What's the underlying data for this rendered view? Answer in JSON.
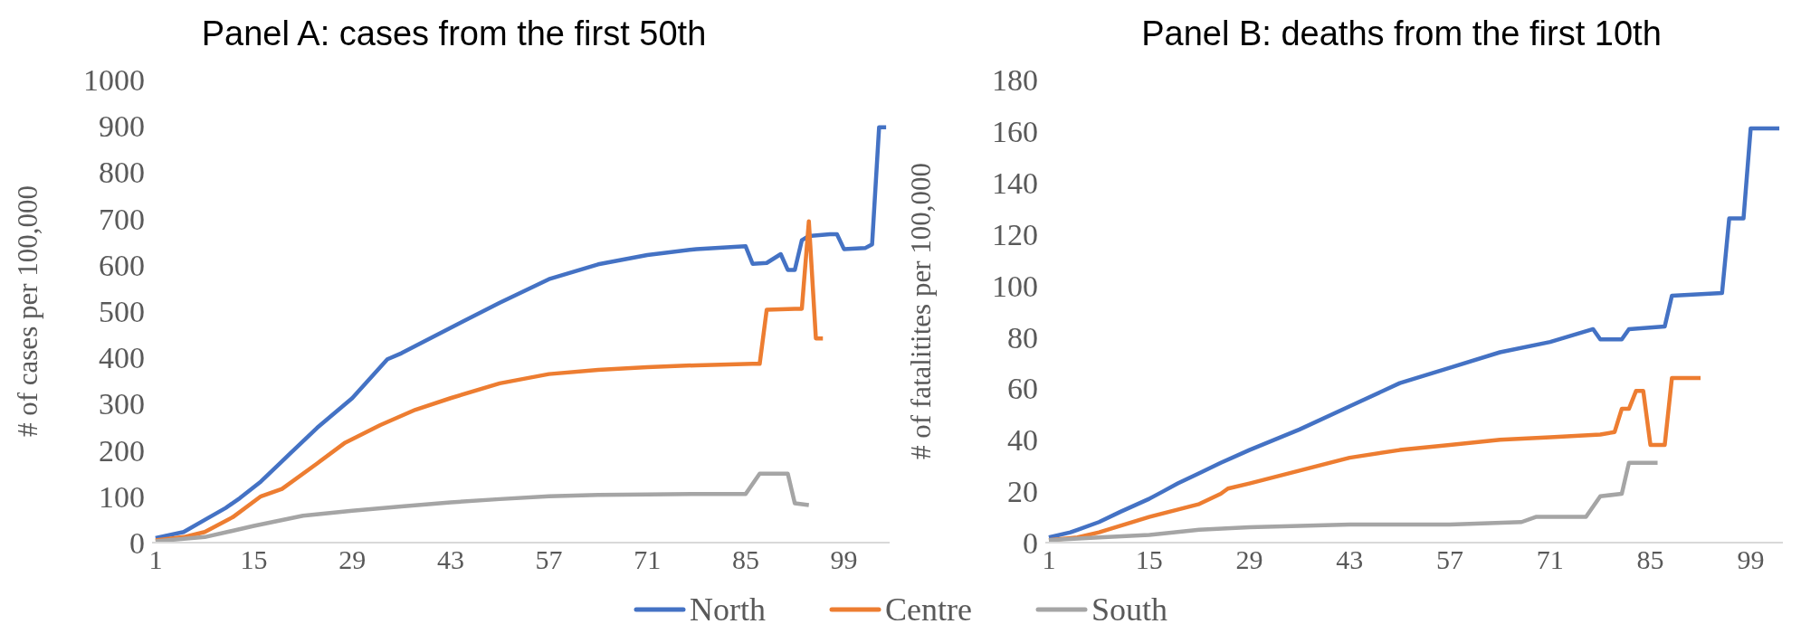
{
  "chart_data": [
    {
      "type": "line",
      "title": "Panel A: cases from the first 50th",
      "ylabel": "# of cases per 100,000",
      "xlim": [
        0.5,
        105.5
      ],
      "xticks": [
        1,
        15,
        29,
        43,
        57,
        71,
        85,
        99
      ],
      "ylim": [
        0,
        1000
      ],
      "yticks": [
        0,
        100,
        200,
        300,
        400,
        500,
        600,
        700,
        800,
        900,
        1000
      ],
      "grid": false,
      "legend": "bottom",
      "marker": "none",
      "line_style": "solid",
      "series": [
        {
          "name": "North",
          "color": "#4472c4",
          "x": [
            1,
            5,
            8,
            11,
            13,
            16,
            20,
            24,
            29,
            34,
            36,
            43,
            50,
            57,
            64,
            71,
            78,
            85,
            86,
            88,
            90,
            91,
            92,
            93,
            94,
            97,
            98,
            99,
            102,
            103,
            104,
            105
          ],
          "values": [
            10,
            23,
            49,
            75,
            96,
            132,
            190,
            248,
            312,
            396,
            409,
            464,
            518,
            569,
            601,
            621,
            634,
            640,
            602,
            604,
            623,
            589,
            589,
            653,
            662,
            666,
            666,
            634,
            636,
            644,
            897,
            897
          ]
        },
        {
          "name": "Centre",
          "color": "#ed7d31",
          "x": [
            1,
            5,
            8,
            12,
            16,
            19,
            24,
            28,
            33,
            38,
            43,
            50,
            57,
            64,
            71,
            78,
            86,
            87,
            88,
            92,
            93,
            94,
            95,
            96
          ],
          "values": [
            5,
            12,
            23,
            55,
            100,
            116,
            171,
            216,
            254,
            287,
            312,
            344,
            364,
            373,
            379,
            383,
            386,
            386,
            503,
            505,
            505,
            694,
            441,
            441
          ]
        },
        {
          "name": "South",
          "color": "#a5a5a5",
          "x": [
            1,
            8,
            15,
            22,
            29,
            36,
            43,
            50,
            57,
            64,
            71,
            78,
            85,
            87,
            91,
            92,
            94
          ],
          "values": [
            3,
            12,
            36,
            58,
            69,
            78,
            87,
            94,
            100,
            103,
            104,
            105,
            105,
            149,
            149,
            85,
            81
          ]
        }
      ]
    },
    {
      "type": "line",
      "title": "Panel B: deaths from the first 10th",
      "ylabel": "# of fatalitites per 100,000",
      "xlim": [
        0.5,
        103.5
      ],
      "xticks": [
        1,
        15,
        29,
        43,
        57,
        71,
        85,
        99
      ],
      "ylim": [
        0,
        180
      ],
      "yticks": [
        0,
        20,
        40,
        60,
        80,
        100,
        120,
        140,
        160,
        180
      ],
      "grid": false,
      "marker": "none",
      "line_style": "solid",
      "series": [
        {
          "color": "#4472c4",
          "x": [
            1,
            4,
            5,
            8,
            11,
            15,
            17,
            19,
            22,
            25,
            29,
            36,
            43,
            50,
            57,
            64,
            71,
            77,
            78,
            81,
            82,
            87,
            88,
            95,
            96,
            98,
            99,
            103
          ],
          "values": [
            2,
            4,
            5,
            8,
            12,
            17,
            20,
            23,
            27,
            31,
            36,
            44,
            53,
            62,
            68,
            74,
            78,
            83,
            79,
            79,
            83,
            84,
            96,
            97,
            126,
            126,
            161,
            161
          ]
        },
        {
          "color": "#ed7d31",
          "x": [
            1,
            5,
            8,
            15,
            22,
            25,
            26,
            29,
            36,
            43,
            50,
            57,
            64,
            71,
            78,
            80,
            81,
            82,
            83,
            84,
            85,
            87,
            88,
            92
          ],
          "values": [
            1,
            2,
            4,
            10,
            15,
            19,
            21,
            23,
            28,
            33,
            36,
            38,
            40,
            41,
            42,
            43,
            52,
            52,
            59,
            59,
            38,
            38,
            64,
            64
          ]
        },
        {
          "color": "#a5a5a5",
          "x": [
            1,
            8,
            15,
            22,
            29,
            43,
            57,
            67,
            69,
            76,
            78,
            81,
            82,
            86
          ],
          "values": [
            1,
            2,
            3,
            5,
            6,
            7,
            7,
            8,
            10,
            10,
            18,
            19,
            31,
            31
          ]
        }
      ]
    }
  ]
}
